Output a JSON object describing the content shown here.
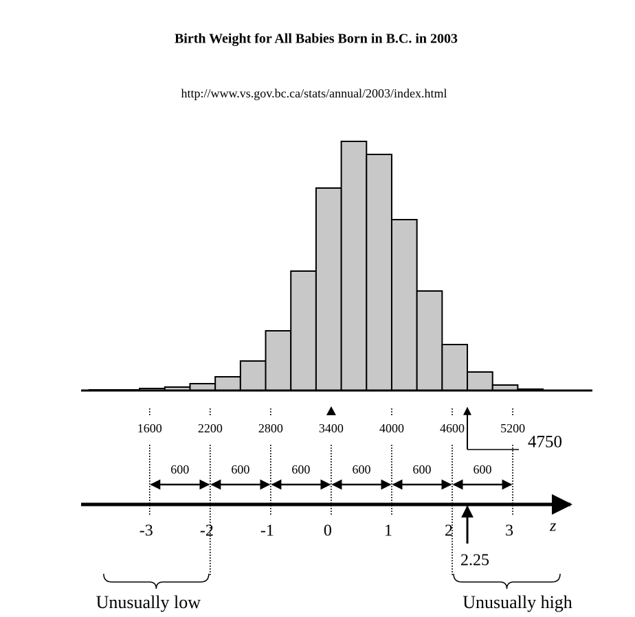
{
  "chart_data": {
    "type": "histogram",
    "title": "Birth Weight for All Babies Born in B.C. in 2003",
    "subtitle": "http://www.vs.gov.bc.ca/stats/annual/2003/index.html",
    "bins": [
      1000,
      1250,
      1500,
      1750,
      2000,
      2250,
      2500,
      2750,
      3000,
      3250,
      3500,
      3750,
      4000,
      4250,
      4500,
      4750,
      5000,
      5250,
      5500
    ],
    "values": [
      1,
      1,
      3,
      5,
      10,
      20,
      43,
      87,
      174,
      295,
      363,
      344,
      249,
      145,
      67,
      27,
      8,
      2
    ],
    "color": "#c8c8c8",
    "xlim": [
      920,
      5990
    ],
    "xticks": [
      1600,
      2200,
      2800,
      3400,
      4000,
      4600,
      5200
    ],
    "zlim": [
      -4.1333,
      4.3167
    ],
    "zticks": [
      -3,
      -2,
      -1,
      0,
      1,
      2,
      3
    ],
    "z_label": "z",
    "intervals": [
      600,
      600,
      600,
      600,
      600,
      600
    ],
    "x_marker": 4750,
    "z_marker": 2.25,
    "regions": [
      {
        "label": "Unusually low"
      },
      {
        "label": "Unusually high"
      }
    ]
  }
}
